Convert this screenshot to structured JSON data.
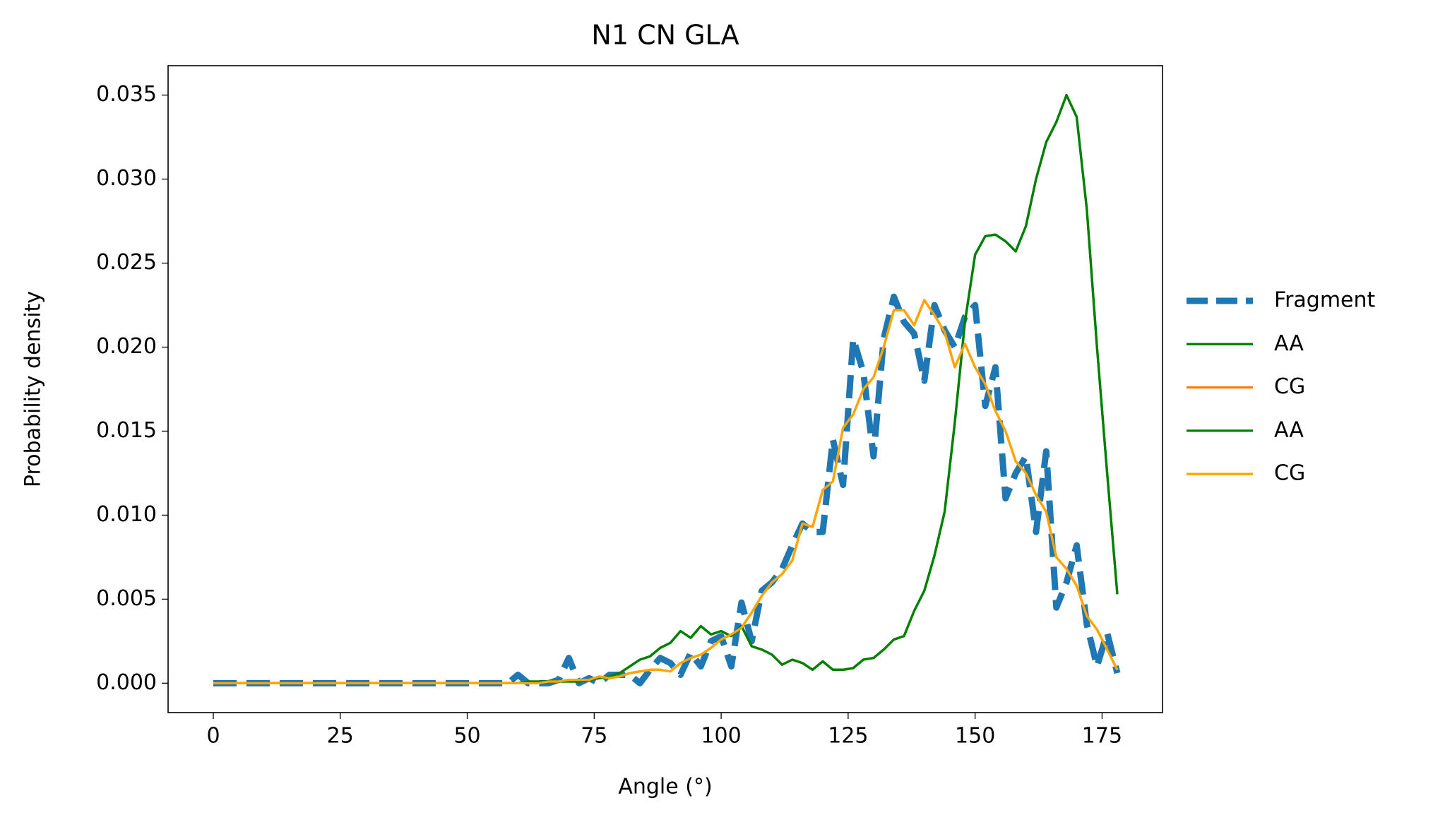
{
  "chart_data": {
    "type": "line",
    "title": "N1 CN GLA",
    "xlabel": "Angle (°)",
    "ylabel": "Probability density",
    "x": [
      0,
      2,
      4,
      6,
      8,
      10,
      12,
      14,
      16,
      18,
      20,
      22,
      24,
      26,
      28,
      30,
      32,
      34,
      36,
      38,
      40,
      42,
      44,
      46,
      48,
      50,
      52,
      54,
      56,
      58,
      60,
      62,
      64,
      66,
      68,
      70,
      72,
      74,
      76,
      78,
      80,
      82,
      84,
      86,
      88,
      90,
      92,
      94,
      96,
      98,
      100,
      102,
      104,
      106,
      108,
      110,
      112,
      114,
      116,
      118,
      120,
      122,
      124,
      126,
      128,
      130,
      132,
      134,
      136,
      138,
      140,
      142,
      144,
      146,
      148,
      150,
      152,
      154,
      156,
      158,
      160,
      162,
      164,
      166,
      168,
      170,
      172,
      174,
      176,
      178
    ],
    "series": [
      {
        "name": "Fragment",
        "color": "#1f77b4",
        "linestyle": "dashed",
        "values": [
          0,
          0,
          0,
          0,
          0,
          0,
          0,
          0,
          0,
          0,
          0,
          0,
          0,
          0,
          0,
          0,
          0,
          0,
          0,
          0,
          0,
          0,
          0,
          0,
          0,
          0,
          0,
          0,
          0,
          0,
          0.0005,
          0,
          0,
          0,
          0.0002,
          0.0015,
          0,
          0.0003,
          0,
          0.0005,
          0.0005,
          0.0005,
          0,
          0.0008,
          0.0015,
          0.0012,
          0.0005,
          0.0018,
          0.001,
          0.0025,
          0.0028,
          0.001,
          0.0048,
          0.0025,
          0.0055,
          0.006,
          0.0068,
          0.0082,
          0.0095,
          0.009,
          0.009,
          0.0145,
          0.0118,
          0.0205,
          0.0185,
          0.0135,
          0.0205,
          0.023,
          0.0215,
          0.0208,
          0.018,
          0.0225,
          0.021,
          0.02,
          0.0218,
          0.0225,
          0.0165,
          0.0188,
          0.011,
          0.0125,
          0.0135,
          0.009,
          0.0138,
          0.0045,
          0.006,
          0.0082,
          0.0035,
          0.001,
          0.003,
          0.0006
        ]
      },
      {
        "name": "AA",
        "color": "#008000",
        "linestyle": "solid",
        "values": [
          0,
          0,
          0,
          0,
          0,
          0,
          0,
          0,
          0,
          0,
          0,
          0,
          0,
          0,
          0,
          0,
          0,
          0,
          0,
          0,
          0,
          0,
          0,
          0,
          0,
          0,
          0,
          0,
          0,
          0,
          0,
          0.0001,
          0.0001,
          0.0001,
          0.0001,
          0.0001,
          0.0001,
          0.0002,
          0.0003,
          0.0004,
          0.0006,
          0.001,
          0.0014,
          0.0016,
          0.0021,
          0.0024,
          0.0031,
          0.0027,
          0.0034,
          0.0029,
          0.0031,
          0.0028,
          0.0034,
          0.0022,
          0.002,
          0.0017,
          0.0011,
          0.0014,
          0.0012,
          0.0008,
          0.0013,
          0.0008,
          0.0008,
          0.0009,
          0.0014,
          0.0015,
          0.002,
          0.0026,
          0.0028,
          0.0043,
          0.0055,
          0.0076,
          0.0102,
          0.0155,
          0.0215,
          0.0255,
          0.0266,
          0.0267,
          0.0263,
          0.0257,
          0.0272,
          0.03,
          0.0322,
          0.0334,
          0.035,
          0.0337,
          0.0282,
          0.02,
          0.0125,
          0.0053
        ]
      },
      {
        "name": "CG",
        "color": "#ff7f0e",
        "linestyle": "solid",
        "values": [
          0,
          0,
          0,
          0,
          0,
          0,
          0,
          0,
          0,
          0,
          0,
          0,
          0,
          0,
          0,
          0,
          0,
          0,
          0,
          0,
          0,
          0,
          0,
          0,
          0,
          0,
          0,
          0,
          0,
          0,
          0,
          0,
          0,
          0.0001,
          0.0001,
          0.0002,
          0.0002,
          0.0002,
          0.0004,
          0.0003,
          0.0004,
          0.0006,
          0.0007,
          0.0008,
          0.0008,
          0.0007,
          0.0012,
          0.0015,
          0.0017,
          0.0021,
          0.0026,
          0.0029,
          0.0033,
          0.0042,
          0.0052,
          0.006,
          0.0065,
          0.0073,
          0.0095,
          0.0093,
          0.0115,
          0.012,
          0.0152,
          0.016,
          0.0175,
          0.0182,
          0.02,
          0.0222,
          0.0222,
          0.0213,
          0.0228,
          0.0219,
          0.0209,
          0.0188,
          0.0202,
          0.0188,
          0.0178,
          0.0162,
          0.015,
          0.0132,
          0.0125,
          0.0112,
          0.0102,
          0.0075,
          0.0068,
          0.0058,
          0.004,
          0.0032,
          0.002,
          0.0008
        ]
      },
      {
        "name": "AA",
        "color": "#008000",
        "linestyle": "solid",
        "values": [
          0,
          0,
          0,
          0,
          0,
          0,
          0,
          0,
          0,
          0,
          0,
          0,
          0,
          0,
          0,
          0,
          0,
          0,
          0,
          0,
          0,
          0,
          0,
          0,
          0,
          0,
          0,
          0,
          0,
          0,
          0,
          0.0001,
          0.0001,
          0.0001,
          0.0001,
          0.0001,
          0.0001,
          0.0002,
          0.0003,
          0.0004,
          0.0006,
          0.001,
          0.0014,
          0.0016,
          0.0021,
          0.0024,
          0.0031,
          0.0027,
          0.0034,
          0.0029,
          0.0031,
          0.0028,
          0.0034,
          0.0022,
          0.002,
          0.0017,
          0.0011,
          0.0014,
          0.0012,
          0.0008,
          0.0013,
          0.0008,
          0.0008,
          0.0009,
          0.0014,
          0.0015,
          0.002,
          0.0026,
          0.0028,
          0.0043,
          0.0055,
          0.0076,
          0.0102,
          0.0155,
          0.0215,
          0.0255,
          0.0266,
          0.0267,
          0.0263,
          0.0257,
          0.0272,
          0.03,
          0.0322,
          0.0334,
          0.035,
          0.0337,
          0.0282,
          0.02,
          0.0125,
          0.0053
        ]
      },
      {
        "name": "CG",
        "color": "#ffa500",
        "linestyle": "solid",
        "values": [
          0,
          0,
          0,
          0,
          0,
          0,
          0,
          0,
          0,
          0,
          0,
          0,
          0,
          0,
          0,
          0,
          0,
          0,
          0,
          0,
          0,
          0,
          0,
          0,
          0,
          0,
          0,
          0,
          0,
          0,
          0,
          0,
          0,
          0.0001,
          0.0001,
          0.0002,
          0.0002,
          0.0002,
          0.0004,
          0.0003,
          0.0004,
          0.0006,
          0.0007,
          0.0008,
          0.0008,
          0.0007,
          0.0012,
          0.0015,
          0.0017,
          0.0021,
          0.0026,
          0.0029,
          0.0033,
          0.0042,
          0.0052,
          0.006,
          0.0065,
          0.0073,
          0.0095,
          0.0093,
          0.0115,
          0.012,
          0.0152,
          0.016,
          0.0175,
          0.0182,
          0.02,
          0.0222,
          0.0222,
          0.0213,
          0.0228,
          0.0219,
          0.0209,
          0.0188,
          0.0202,
          0.0188,
          0.0178,
          0.0162,
          0.015,
          0.0132,
          0.0125,
          0.0112,
          0.0102,
          0.0075,
          0.0068,
          0.0058,
          0.004,
          0.0032,
          0.002,
          0.0008
        ]
      }
    ],
    "xlim": [
      -8.9,
      186.9
    ],
    "xticks": [
      0,
      25,
      50,
      75,
      100,
      125,
      150,
      175
    ],
    "ylim": [
      -0.00175,
      0.03675
    ],
    "yticks": [
      {
        "value": 0,
        "label": "0.000"
      },
      {
        "value": 0.005,
        "label": "0.005"
      },
      {
        "value": 0.01,
        "label": "0.010"
      },
      {
        "value": 0.015,
        "label": "0.015"
      },
      {
        "value": 0.02,
        "label": "0.020"
      },
      {
        "value": 0.025,
        "label": "0.025"
      },
      {
        "value": 0.03,
        "label": "0.030"
      },
      {
        "value": 0.035,
        "label": "0.035"
      }
    ],
    "grid": false,
    "legend": "outside right"
  }
}
